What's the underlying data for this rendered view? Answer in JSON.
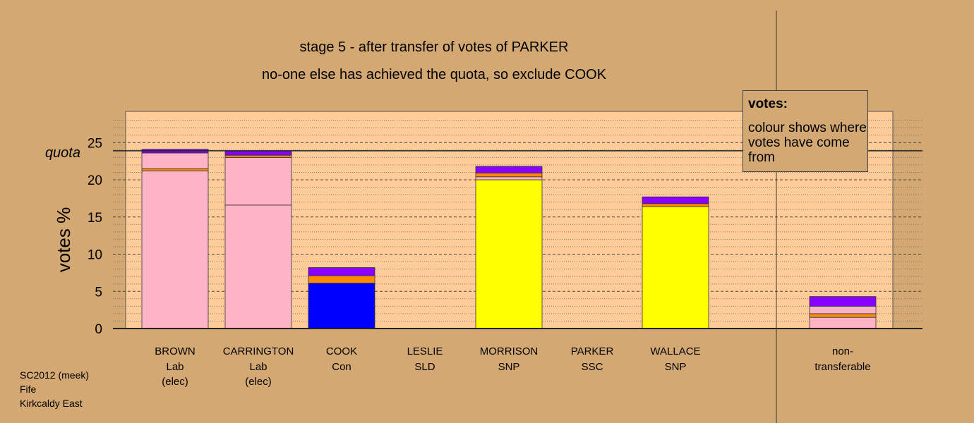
{
  "chart_data": {
    "type": "bar",
    "stacked": true,
    "title": "stage 5 - after transfer of votes of PARKER",
    "subtitle": "no-one else has achieved the quota, so exclude COOK",
    "ylabel": "votes %",
    "ylim": [
      0,
      28
    ],
    "yticks": [
      0,
      5,
      10,
      15,
      20,
      25
    ],
    "quota": 23.9,
    "quota_label": "quota",
    "grid": "dashed horizontal",
    "legend": {
      "title": "votes:",
      "body": "colour shows where votes have come from",
      "placement": "top-right"
    },
    "colors": {
      "Lab": "#ffb3c6",
      "Con": "#0000ff",
      "SNP": "#ffff00",
      "SSC": "#ff8c00",
      "SLD": "#ffb3c6",
      "transfer": "#8800ff"
    },
    "candidates": [
      {
        "name": "BROWN",
        "party": "Lab",
        "note": "(elec)",
        "segments": [
          {
            "source": "Lab",
            "value": 21.2
          },
          {
            "source": "SSC",
            "value": 0.3
          },
          {
            "source": "Lab",
            "value": 2.1
          },
          {
            "source": "transfer",
            "value": 0.5
          }
        ]
      },
      {
        "name": "CARRINGTON",
        "party": "Lab",
        "note": "(elec)",
        "segments": [
          {
            "source": "Lab",
            "value": 16.6
          },
          {
            "source": "Lab",
            "value": 6.4
          },
          {
            "source": "SSC",
            "value": 0.3
          },
          {
            "source": "transfer",
            "value": 0.6
          }
        ]
      },
      {
        "name": "COOK",
        "party": "Con",
        "note": "",
        "segments": [
          {
            "source": "Con",
            "value": 6.1
          },
          {
            "source": "SSC",
            "value": 1.0
          },
          {
            "source": "transfer",
            "value": 1.1
          }
        ]
      },
      {
        "name": "LESLIE",
        "party": "SLD",
        "note": "",
        "segments": []
      },
      {
        "name": "MORRISON",
        "party": "SNP",
        "note": "",
        "segments": [
          {
            "source": "SNP",
            "value": 20.0
          },
          {
            "source": "Lab",
            "value": 0.4
          },
          {
            "source": "SSC",
            "value": 0.5
          },
          {
            "source": "transfer",
            "value": 0.9
          }
        ]
      },
      {
        "name": "PARKER",
        "party": "SSC",
        "note": "",
        "segments": []
      },
      {
        "name": "WALLACE",
        "party": "SNP",
        "note": "",
        "segments": [
          {
            "source": "SNP",
            "value": 16.4
          },
          {
            "source": "SSC",
            "value": 0.4
          },
          {
            "source": "transfer",
            "value": 0.9
          }
        ]
      }
    ],
    "nontransferable": {
      "label": "non-transferable",
      "segments": [
        {
          "source": "Lab",
          "value": 1.5
        },
        {
          "source": "SSC",
          "value": 0.5
        },
        {
          "source": "Lab",
          "value": 1.0
        },
        {
          "source": "transfer",
          "value": 1.3
        }
      ]
    }
  },
  "footer": [
    "SC2012 (meek)",
    "Fife",
    "Kirkcaldy East"
  ]
}
